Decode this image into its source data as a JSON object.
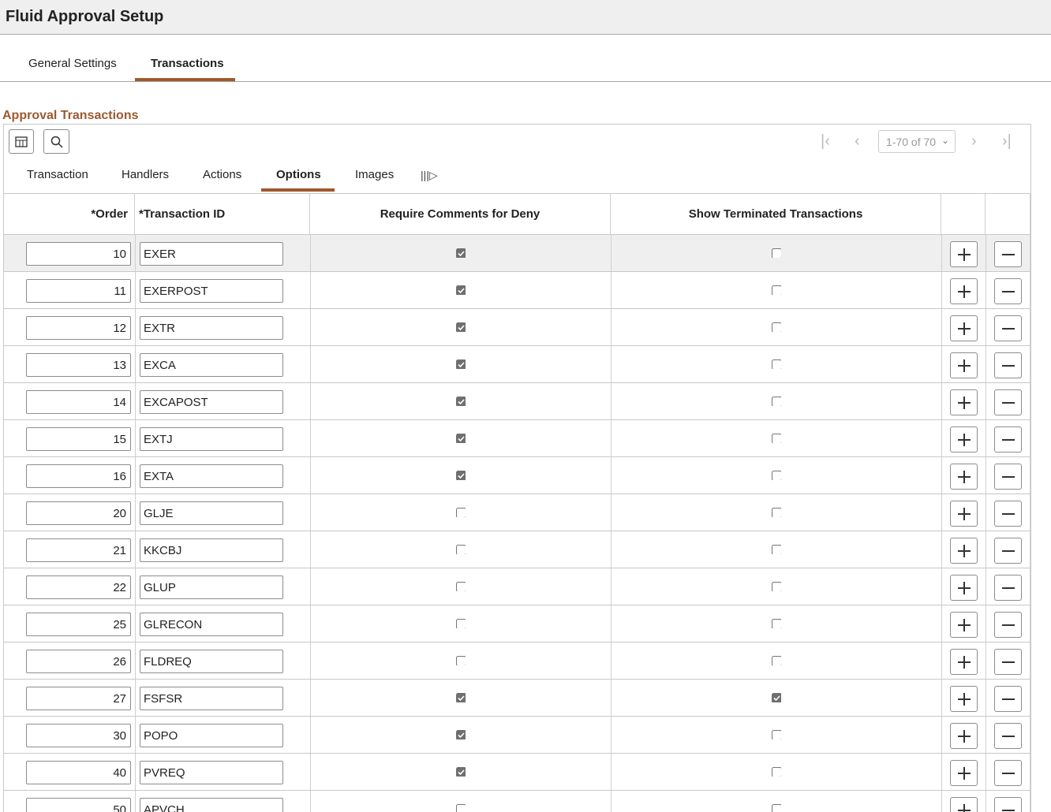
{
  "header": {
    "title": "Fluid Approval Setup"
  },
  "tabs": [
    {
      "label": "General Settings"
    },
    {
      "label": "Transactions"
    }
  ],
  "active_tab": 1,
  "section": {
    "title": "Approval Transactions"
  },
  "grid": {
    "pager": "1-70 of 70",
    "subtabs": [
      {
        "label": "Transaction"
      },
      {
        "label": "Handlers"
      },
      {
        "label": "Actions"
      },
      {
        "label": "Options"
      },
      {
        "label": "Images"
      }
    ],
    "active_subtab": 3,
    "columns": [
      "*Order",
      "*Transaction ID",
      "Require Comments for Deny",
      "Show Terminated Transactions"
    ],
    "rows": [
      {
        "order": 10,
        "transaction_id": "EXER",
        "require_comments": true,
        "show_terminated": false
      },
      {
        "order": 11,
        "transaction_id": "EXERPOST",
        "require_comments": true,
        "show_terminated": false
      },
      {
        "order": 12,
        "transaction_id": "EXTR",
        "require_comments": true,
        "show_terminated": false
      },
      {
        "order": 13,
        "transaction_id": "EXCA",
        "require_comments": true,
        "show_terminated": false
      },
      {
        "order": 14,
        "transaction_id": "EXCAPOST",
        "require_comments": true,
        "show_terminated": false
      },
      {
        "order": 15,
        "transaction_id": "EXTJ",
        "require_comments": true,
        "show_terminated": false
      },
      {
        "order": 16,
        "transaction_id": "EXTA",
        "require_comments": true,
        "show_terminated": false
      },
      {
        "order": 20,
        "transaction_id": "GLJE",
        "require_comments": false,
        "show_terminated": false
      },
      {
        "order": 21,
        "transaction_id": "KKCBJ",
        "require_comments": false,
        "show_terminated": false
      },
      {
        "order": 22,
        "transaction_id": "GLUP",
        "require_comments": false,
        "show_terminated": false
      },
      {
        "order": 25,
        "transaction_id": "GLRECON",
        "require_comments": false,
        "show_terminated": false
      },
      {
        "order": 26,
        "transaction_id": "FLDREQ",
        "require_comments": false,
        "show_terminated": false
      },
      {
        "order": 27,
        "transaction_id": "FSFSR",
        "require_comments": true,
        "show_terminated": true
      },
      {
        "order": 30,
        "transaction_id": "POPO",
        "require_comments": true,
        "show_terminated": false
      },
      {
        "order": 40,
        "transaction_id": "PVREQ",
        "require_comments": true,
        "show_terminated": false
      },
      {
        "order": 50,
        "transaction_id": "APVCH",
        "require_comments": false,
        "show_terminated": false
      }
    ]
  }
}
